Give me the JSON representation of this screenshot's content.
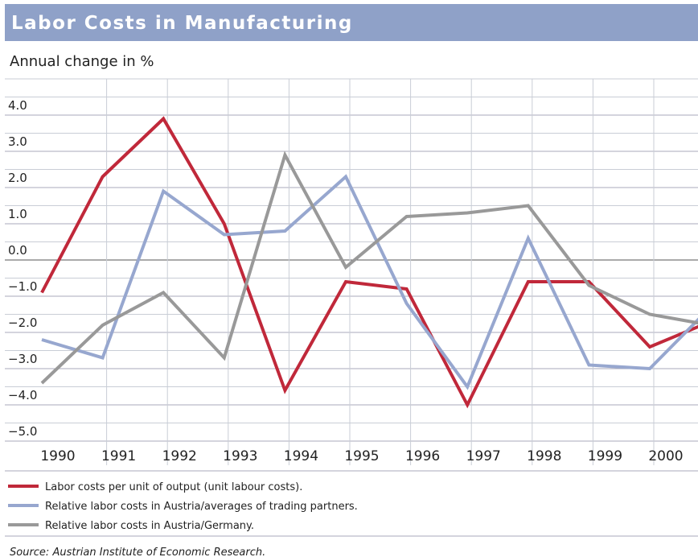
{
  "chart_data": {
    "type": "line",
    "title": "Labor Costs in Manufacturing",
    "subtitle": "Annual change in %",
    "categories": [
      "1990",
      "1991",
      "1992",
      "1993",
      "1994",
      "1995",
      "1996",
      "1997",
      "1998",
      "1999",
      "2000",
      null
    ],
    "series": [
      {
        "name": "Labor costs per unit of output (unit labour costs).",
        "color": "#c0283a",
        "values": [
          -0.9,
          2.3,
          3.9,
          1.0,
          -3.6,
          -0.6,
          -0.8,
          -4.0,
          -0.6,
          -0.6,
          -2.4,
          -1.7
        ]
      },
      {
        "name": "Relative labor costs in Austria/averages of trading partners.",
        "color": "#97a7cf",
        "values": [
          -2.2,
          -2.7,
          1.9,
          0.7,
          0.8,
          2.3,
          -1.2,
          -3.5,
          0.6,
          -2.9,
          -3.0,
          -1.3
        ]
      },
      {
        "name": "Relative labor costs in Austria/Germany.",
        "color": "#999999",
        "values": [
          -3.4,
          -1.8,
          -0.9,
          -2.7,
          2.9,
          -0.2,
          1.2,
          1.3,
          1.5,
          -0.7,
          -1.5,
          -1.8
        ]
      }
    ],
    "ylim": [
      -5,
      5
    ],
    "yticks": [
      {
        "value": 4,
        "label": "4.0"
      },
      {
        "value": 3,
        "label": "3.0"
      },
      {
        "value": 2,
        "label": "2.0"
      },
      {
        "value": 1,
        "label": "1.0"
      },
      {
        "value": 0,
        "label": "0.0"
      },
      {
        "value": -1,
        "label": "−1.0"
      },
      {
        "value": -2,
        "label": "−2.0"
      },
      {
        "value": -3,
        "label": "−3.0"
      },
      {
        "value": -4,
        "label": "−4.0"
      },
      {
        "value": -5,
        "label": "−5.0"
      }
    ],
    "grid": true,
    "source": "Source: Austrian Institute of Economic Research."
  }
}
